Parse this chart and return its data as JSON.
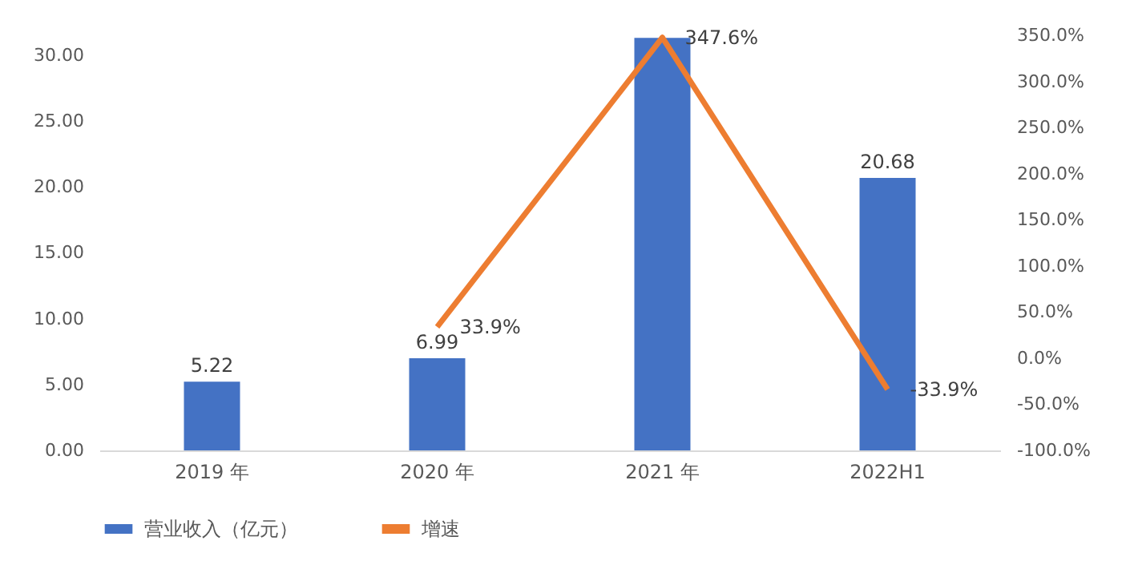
{
  "chart_data": {
    "type": "bar",
    "categories": [
      "2019 年",
      "2020 年",
      "2021 年",
      "2022H1"
    ],
    "series": [
      {
        "name": "营业收入（亿元）",
        "color": "#4472c4",
        "values": [
          5.22,
          6.99,
          31.3,
          20.68
        ],
        "value_labels": [
          "5.22",
          "6.99",
          null,
          "20.68"
        ]
      },
      {
        "name": "增速",
        "type": "line",
        "axis": "y2",
        "color": "#ed7d31",
        "values": [
          null,
          33.9,
          347.6,
          -33.9
        ],
        "value_labels": [
          null,
          "33.9%",
          "347.6%",
          "-33.9%"
        ]
      }
    ],
    "ylim": [
      0,
      31.5
    ],
    "yticks": [
      {
        "value": 0,
        "label": "0.00"
      },
      {
        "value": 5,
        "label": "5.00"
      },
      {
        "value": 10,
        "label": "10.00"
      },
      {
        "value": 15,
        "label": "15.00"
      },
      {
        "value": 20,
        "label": "20.00"
      },
      {
        "value": 25,
        "label": "25.00"
      },
      {
        "value": 30,
        "label": "30.00"
      }
    ],
    "y2lim": [
      -100,
      350
    ],
    "y2ticks": [
      {
        "value": -100,
        "label": "-100.0%"
      },
      {
        "value": -50,
        "label": "-50.0%"
      },
      {
        "value": 0,
        "label": "0.0%"
      },
      {
        "value": 50,
        "label": "50.0%"
      },
      {
        "value": 100,
        "label": "100.0%"
      },
      {
        "value": 150,
        "label": "150.0%"
      },
      {
        "value": 200,
        "label": "200.0%"
      },
      {
        "value": 250,
        "label": "250.0%"
      },
      {
        "value": 300,
        "label": "300.0%"
      },
      {
        "value": 350,
        "label": "350.0%"
      }
    ],
    "grid": false,
    "legend": "bottom",
    "marker": "none",
    "line_style": "solid"
  }
}
